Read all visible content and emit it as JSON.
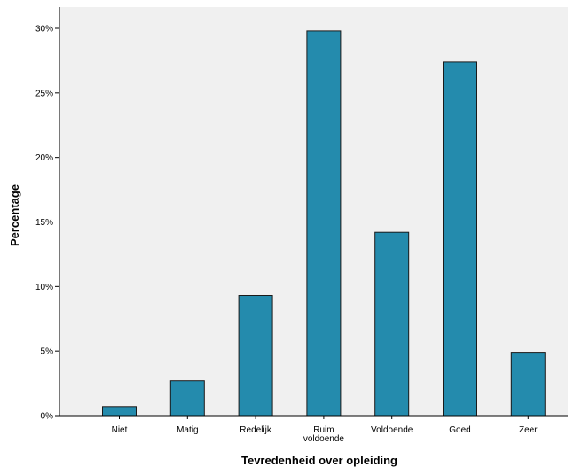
{
  "chart_data": {
    "type": "bar",
    "title": "",
    "xlabel": "Tevredenheid over opleiding",
    "ylabel": "Percentage",
    "categories": [
      [
        "Niet"
      ],
      [
        "Matig"
      ],
      [
        "Redelijk"
      ],
      [
        "Ruim",
        "voldoende"
      ],
      [
        "Voldoende"
      ],
      [
        "Goed"
      ],
      [
        "Zeer"
      ]
    ],
    "values": [
      0.7,
      2.7,
      9.3,
      29.8,
      14.2,
      27.4,
      4.9
    ],
    "ylim": [
      0,
      32
    ],
    "yticks": [
      0,
      5,
      10,
      15,
      20,
      25,
      30
    ],
    "ytick_labels": [
      "0%",
      "5%",
      "10%",
      "15%",
      "20%",
      "25%",
      "30%"
    ],
    "grid": false,
    "colors": {
      "bar_fill": "#248bad",
      "bar_stroke": "#1a1a1a",
      "plot_background": "#f0f0f0",
      "axis": "#000000"
    }
  }
}
